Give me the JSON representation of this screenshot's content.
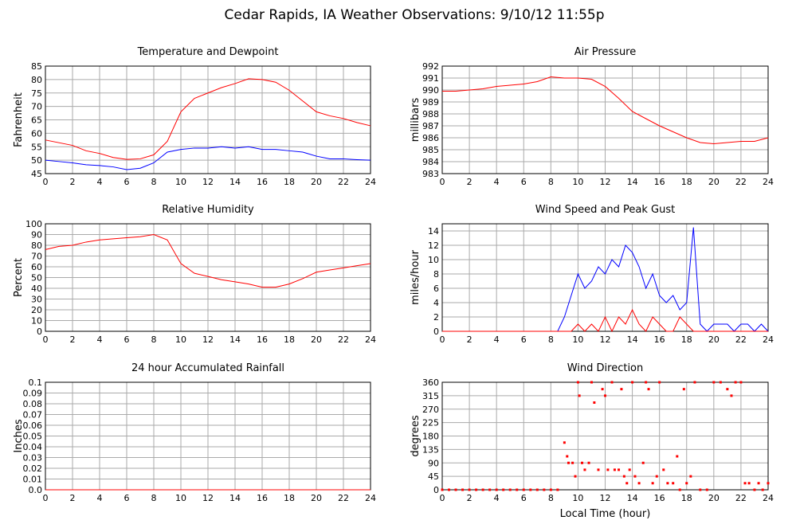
{
  "title": "Cedar Rapids, IA Weather Observations: 9/10/12 11:55p",
  "chart_data": [
    {
      "type": "line",
      "title": "Temperature and Dewpoint",
      "ylabel": "Fahrenheit",
      "grid": true,
      "xlim": [
        0,
        24
      ],
      "xticks": [
        0,
        2,
        4,
        6,
        8,
        10,
        12,
        14,
        16,
        18,
        20,
        22,
        24
      ],
      "ylim": [
        45,
        85
      ],
      "yticks": [
        45,
        50,
        55,
        60,
        65,
        70,
        75,
        80,
        85
      ],
      "series": [
        {
          "color": "#ff0000",
          "x": [
            0,
            1,
            2,
            3,
            4,
            5,
            6,
            7,
            8,
            9,
            10,
            11,
            12,
            13,
            14,
            15,
            16,
            17,
            18,
            19,
            20,
            21,
            22,
            23,
            24
          ],
          "values": [
            57.5,
            56.5,
            55.5,
            53.5,
            52.5,
            51,
            50.3,
            50.5,
            52,
            57,
            68,
            73,
            75,
            77,
            78.5,
            80.3,
            80,
            79,
            76,
            72,
            68,
            66.5,
            65.5,
            64,
            62.8
          ]
        },
        {
          "color": "#0000ff",
          "x": [
            0,
            1,
            2,
            3,
            4,
            5,
            6,
            7,
            8,
            9,
            10,
            11,
            12,
            13,
            14,
            15,
            16,
            17,
            18,
            19,
            20,
            21,
            22,
            23,
            24
          ],
          "values": [
            50,
            49.5,
            49,
            48.3,
            48,
            47.5,
            46.5,
            47,
            49,
            53,
            54,
            54.5,
            54.5,
            55,
            54.5,
            55,
            54,
            54,
            53.5,
            53,
            51.5,
            50.5,
            50.5,
            50.2,
            50
          ]
        }
      ]
    },
    {
      "type": "line",
      "title": "Air Pressure",
      "ylabel": "millibars",
      "grid": true,
      "xlim": [
        0,
        24
      ],
      "xticks": [
        0,
        2,
        4,
        6,
        8,
        10,
        12,
        14,
        16,
        18,
        20,
        22,
        24
      ],
      "ylim": [
        983,
        992
      ],
      "yticks": [
        983,
        984,
        985,
        986,
        987,
        988,
        989,
        990,
        991,
        992
      ],
      "series": [
        {
          "color": "#ff0000",
          "x": [
            0,
            1,
            2,
            3,
            4,
            5,
            6,
            7,
            8,
            9,
            10,
            11,
            12,
            13,
            14,
            15,
            16,
            17,
            18,
            19,
            20,
            21,
            22,
            23,
            24
          ],
          "values": [
            989.9,
            989.9,
            990.0,
            990.1,
            990.3,
            990.4,
            990.5,
            990.7,
            991.1,
            991.0,
            991.0,
            990.9,
            990.3,
            989.3,
            988.2,
            987.6,
            987.0,
            986.5,
            986.0,
            985.6,
            985.5,
            985.6,
            985.7,
            985.7,
            986.0
          ]
        }
      ]
    },
    {
      "type": "line",
      "title": "Relative Humidity",
      "ylabel": "Percent",
      "grid": true,
      "xlim": [
        0,
        24
      ],
      "xticks": [
        0,
        2,
        4,
        6,
        8,
        10,
        12,
        14,
        16,
        18,
        20,
        22,
        24
      ],
      "ylim": [
        0,
        100
      ],
      "yticks": [
        0,
        10,
        20,
        30,
        40,
        50,
        60,
        70,
        80,
        90,
        100
      ],
      "series": [
        {
          "color": "#ff0000",
          "x": [
            0,
            1,
            2,
            3,
            4,
            5,
            6,
            7,
            8,
            9,
            10,
            11,
            12,
            13,
            14,
            15,
            16,
            17,
            18,
            19,
            20,
            21,
            22,
            23,
            24
          ],
          "values": [
            76,
            79,
            80,
            83,
            85,
            86,
            87,
            88,
            90,
            85,
            63,
            54,
            51,
            48,
            46,
            44,
            41,
            41,
            44,
            49,
            55,
            57,
            59,
            61,
            63
          ]
        }
      ]
    },
    {
      "type": "line",
      "title": "Wind Speed and Peak Gust",
      "ylabel": "miles/hour",
      "grid": true,
      "xlim": [
        0,
        24
      ],
      "xticks": [
        0,
        2,
        4,
        6,
        8,
        10,
        12,
        14,
        16,
        18,
        20,
        22,
        24
      ],
      "ylim": [
        0,
        15
      ],
      "yticks": [
        0,
        2,
        4,
        6,
        8,
        10,
        12,
        14
      ],
      "series": [
        {
          "color": "#0000ff",
          "x": [
            0,
            0.5,
            1,
            1.5,
            2,
            2.5,
            3,
            3.5,
            4,
            4.5,
            5,
            5.5,
            6,
            6.5,
            7,
            7.5,
            8,
            8.5,
            9,
            9.5,
            10,
            10.5,
            11,
            11.5,
            12,
            12.5,
            13,
            13.5,
            14,
            14.5,
            15,
            15.5,
            16,
            16.5,
            17,
            17.5,
            18,
            18.5,
            19,
            19.5,
            20,
            20.5,
            21,
            21.5,
            22,
            22.5,
            23,
            23.5,
            24
          ],
          "values": [
            0,
            0,
            0,
            0,
            0,
            0,
            0,
            0,
            0,
            0,
            0,
            0,
            0,
            0,
            0,
            0,
            0,
            0,
            2,
            5,
            8,
            6,
            7,
            9,
            8,
            10,
            9,
            12,
            11,
            9,
            6,
            8,
            5,
            4,
            5,
            3,
            4,
            14.5,
            1,
            0,
            1,
            1,
            1,
            0,
            1,
            1,
            0,
            1,
            0
          ]
        },
        {
          "color": "#ff0000",
          "x": [
            0,
            0.5,
            1,
            1.5,
            2,
            2.5,
            3,
            3.5,
            4,
            4.5,
            5,
            5.5,
            6,
            6.5,
            7,
            7.5,
            8,
            8.5,
            9,
            9.5,
            10,
            10.5,
            11,
            11.5,
            12,
            12.5,
            13,
            13.5,
            14,
            14.5,
            15,
            15.5,
            16,
            16.5,
            17,
            17.5,
            18,
            18.5,
            19,
            19.5,
            20,
            20.5,
            21,
            21.5,
            22,
            22.5,
            23,
            23.5,
            24
          ],
          "values": [
            0,
            0,
            0,
            0,
            0,
            0,
            0,
            0,
            0,
            0,
            0,
            0,
            0,
            0,
            0,
            0,
            0,
            0,
            0,
            0,
            1,
            0,
            1,
            0,
            2,
            0,
            2,
            1,
            3,
            1,
            0,
            2,
            1,
            0,
            0,
            2,
            1,
            0,
            0,
            0,
            0,
            0,
            0,
            0,
            0,
            0,
            0,
            0,
            0
          ]
        }
      ]
    },
    {
      "type": "line",
      "title": "24 hour Accumulated Rainfall",
      "ylabel": "Inches",
      "grid": true,
      "xlim": [
        0,
        24
      ],
      "xticks": [
        0,
        2,
        4,
        6,
        8,
        10,
        12,
        14,
        16,
        18,
        20,
        22,
        24
      ],
      "ylim": [
        0,
        0.1
      ],
      "yticks": [
        {
          "value": 0,
          "label": "0.0"
        },
        0.01,
        0.02,
        0.03,
        0.04,
        0.05,
        0.06,
        0.07,
        0.08,
        0.09,
        0.1
      ],
      "series": [
        {
          "color": "#ff0000",
          "x": [
            0,
            24
          ],
          "values": [
            0,
            0
          ]
        }
      ]
    },
    {
      "type": "scatter",
      "title": "Wind Direction",
      "ylabel": "degrees",
      "xlabel": "Local Time (hour)",
      "grid": true,
      "xlim": [
        0,
        24
      ],
      "xticks": [
        0,
        2,
        4,
        6,
        8,
        10,
        12,
        14,
        16,
        18,
        20,
        22,
        24
      ],
      "ylim": [
        0,
        360
      ],
      "yticks": [
        0,
        45,
        90,
        135,
        180,
        225,
        270,
        315,
        360
      ],
      "series": [
        {
          "color": "#ff0000",
          "x": [
            0,
            0.5,
            1,
            1.5,
            2,
            2.5,
            3,
            3.5,
            4,
            4.5,
            5,
            5.5,
            6,
            6.5,
            7,
            7.5,
            8,
            8.5,
            9,
            9.2,
            9.3,
            9.6,
            9.8,
            10,
            10.1,
            10.3,
            10.5,
            10.8,
            11,
            11.2,
            11.5,
            11.8,
            12,
            12.2,
            12.5,
            12.7,
            13,
            13.2,
            13.4,
            13.6,
            13.8,
            14,
            14.2,
            14.5,
            14.8,
            15,
            15.2,
            15.5,
            15.8,
            16,
            16.3,
            16.6,
            17,
            17.3,
            17.5,
            17.8,
            18,
            18.3,
            18.6,
            19,
            19.5,
            20,
            20.5,
            21,
            21.3,
            21.6,
            22,
            22.3,
            22.6,
            23,
            23.3,
            23.6,
            24
          ],
          "values": [
            0,
            0,
            0,
            0,
            0,
            0,
            0,
            0,
            0,
            0,
            0,
            0,
            0,
            0,
            0,
            0,
            0,
            0,
            158,
            112,
            90,
            90,
            45,
            360,
            315,
            90,
            67,
            90,
            360,
            292,
            67,
            337,
            315,
            67,
            360,
            67,
            67,
            337,
            45,
            22,
            67,
            360,
            45,
            22,
            90,
            360,
            337,
            22,
            45,
            360,
            67,
            22,
            22,
            112,
            0,
            337,
            22,
            45,
            360,
            0,
            0,
            360,
            360,
            337,
            315,
            360,
            360,
            22,
            22,
            0,
            22,
            0,
            22
          ]
        }
      ]
    }
  ]
}
